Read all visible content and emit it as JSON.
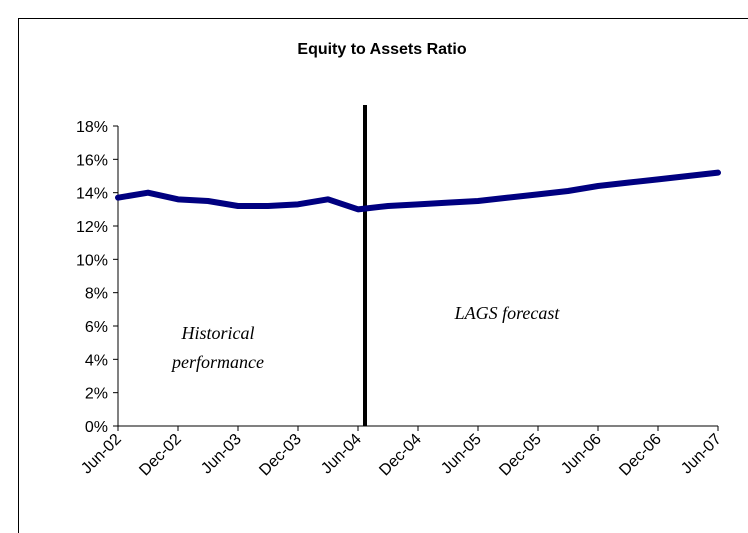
{
  "chart_data": {
    "type": "line",
    "title": "Equity to Assets Ratio",
    "categories": [
      "Jun-02",
      null,
      "Dec-02",
      null,
      "Jun-03",
      null,
      "Dec-03",
      null,
      "Jun-04",
      null,
      "Dec-04",
      null,
      "Jun-05",
      null,
      "Dec-05",
      null,
      "Jun-06",
      null,
      "Dec-06",
      null,
      "Jun-07"
    ],
    "series": [
      {
        "name": "Equity to Assets Ratio",
        "color": "#000080",
        "values": [
          13.7,
          14.0,
          13.6,
          13.5,
          13.2,
          13.2,
          13.3,
          13.6,
          13.0,
          13.2,
          13.3,
          13.4,
          13.5,
          13.7,
          13.9,
          14.1,
          14.4,
          14.6,
          14.8,
          15.0,
          15.2
        ]
      }
    ],
    "ylim": [
      0,
      18
    ],
    "yticks": [
      {
        "value": 0,
        "label": "0%"
      },
      {
        "value": 2,
        "label": "2%"
      },
      {
        "value": 4,
        "label": "4%"
      },
      {
        "value": 6,
        "label": "6%"
      },
      {
        "value": 8,
        "label": "8%"
      },
      {
        "value": 10,
        "label": "10%"
      },
      {
        "value": 12,
        "label": "12%"
      },
      {
        "value": 14,
        "label": "14%"
      },
      {
        "value": 16,
        "label": "16%"
      },
      {
        "value": 18,
        "label": "18%"
      }
    ],
    "annotations": [
      {
        "lines": [
          "Historical",
          "performance"
        ]
      },
      {
        "lines": [
          "LAGS forecast"
        ]
      }
    ]
  }
}
